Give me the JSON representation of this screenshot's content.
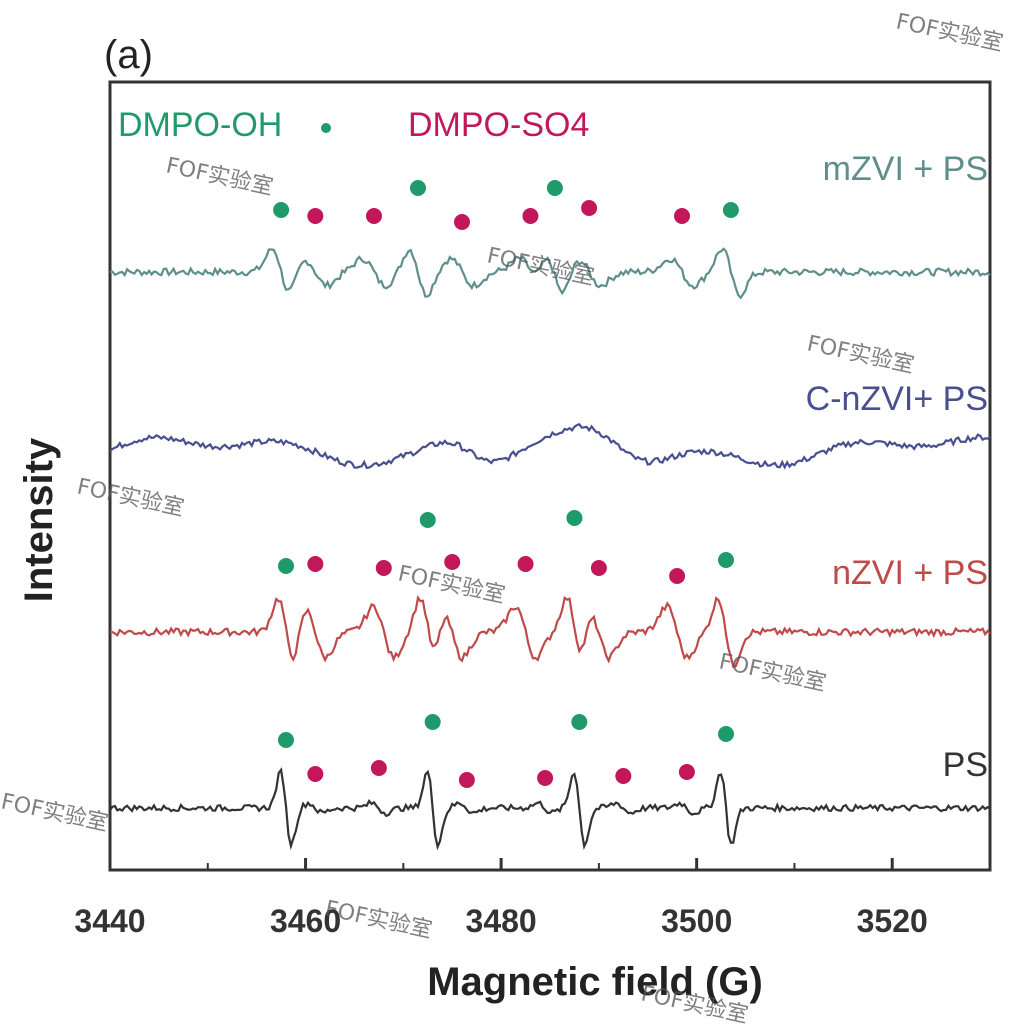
{
  "panel_label": "(a)",
  "watermark": "FOF实验室",
  "chart_data": {
    "type": "line",
    "title": "",
    "xlabel": "Magnetic field (G)",
    "ylabel": "Intensity",
    "xlim": [
      3440,
      3530
    ],
    "x_ticks": [
      3440,
      3460,
      3480,
      3500,
      3520
    ],
    "y_ticks_shown": false,
    "grid": false,
    "legend": {
      "placement": "top-left",
      "entries": [
        {
          "label": "DMPO-OH",
          "marker": "dot",
          "color": "#1f9a6a"
        },
        {
          "label": "DMPO-SO4",
          "marker": "dot",
          "color": "#c2185b"
        }
      ]
    },
    "series": [
      {
        "name": "mZVI + PS",
        "color": "#5f8f8c",
        "oh_peaks_G": [
          3457.5,
          3471.5,
          3485.5,
          3503.5
        ],
        "so4_peaks_G": [
          3461,
          3467,
          3476,
          3483,
          3489,
          3498.5
        ]
      },
      {
        "name": "C-nZVI+ PS",
        "color": "#4a4f8f",
        "oh_peaks_G": [],
        "so4_peaks_G": []
      },
      {
        "name": "nZVI + PS",
        "color": "#c04a4a",
        "oh_peaks_G": [
          3458,
          3472.5,
          3487.5,
          3503
        ],
        "so4_peaks_G": [
          3461,
          3468,
          3475,
          3482.5,
          3490,
          3498
        ]
      },
      {
        "name": "PS",
        "color": "#333333",
        "oh_peaks_G": [
          3458,
          3473,
          3488,
          3503
        ],
        "so4_peaks_G": [
          3461,
          3467.5,
          3476.5,
          3484.5,
          3492.5,
          3499
        ]
      }
    ]
  }
}
